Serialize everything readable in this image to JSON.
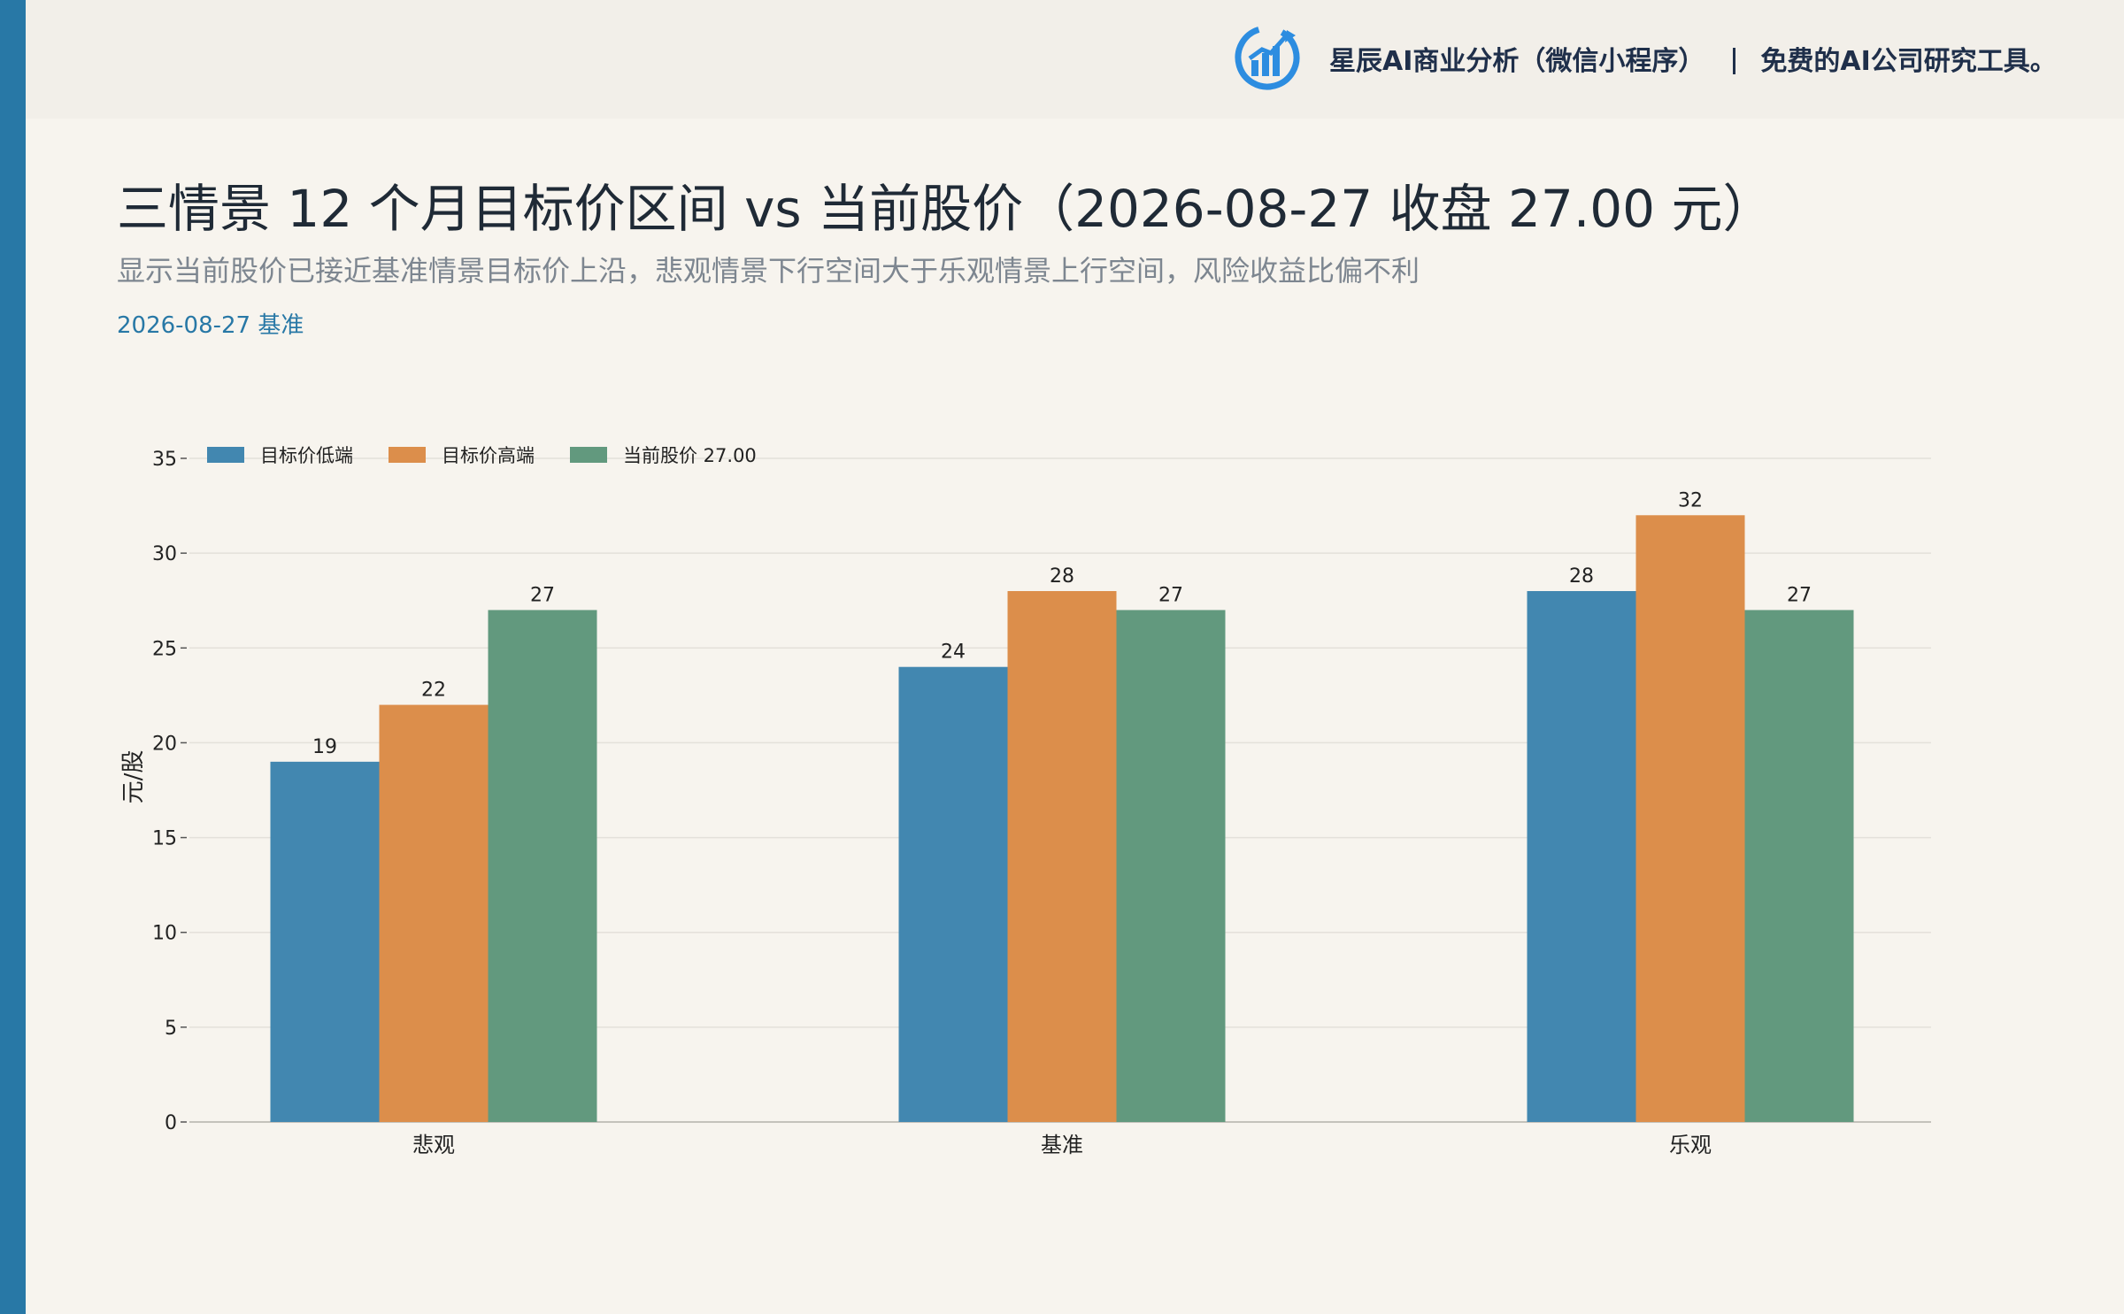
{
  "brand": {
    "name": "星辰AI商业分析（微信小程序）",
    "tagline": "免费的AI公司研究工具。"
  },
  "header": {
    "title": "三情景 12 个月目标价区间 vs 当前股价（2026-08-27 收盘 27.00 元）",
    "subtitle": "显示当前股价已接近基准情景目标价上沿，悲观情景下行空间大于乐观情景上行空间，风险收益比偏不利",
    "date_label": "2026-08-27 基准"
  },
  "colors": {
    "background": "#f7f4ee",
    "accent": "#2878a6",
    "low": "#4287b0",
    "high": "#dc8e4b",
    "current": "#62997e"
  },
  "chart_data": {
    "type": "bar",
    "categories": [
      "悲观",
      "基准",
      "乐观"
    ],
    "series": [
      {
        "name": "目标价低端",
        "values": [
          19,
          24,
          28
        ],
        "color": "#4287b0"
      },
      {
        "name": "目标价高端",
        "values": [
          22,
          28,
          32
        ],
        "color": "#dc8e4b"
      },
      {
        "name": "当前股价 27.00",
        "values": [
          27,
          27,
          27
        ],
        "color": "#62997e"
      }
    ],
    "ylabel": "元/股",
    "ylim": [
      0,
      35
    ],
    "yticks": [
      0,
      5,
      10,
      15,
      20,
      25,
      30,
      35
    ],
    "grid": true,
    "legend": "top-left"
  }
}
